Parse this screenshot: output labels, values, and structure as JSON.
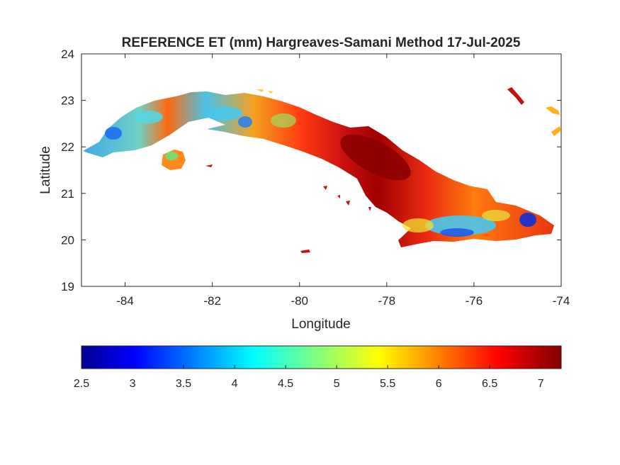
{
  "title": "REFERENCE ET (mm) Hargreaves-Samani Method  17-Jul-2025",
  "chart_data": {
    "type": "heatmap",
    "title": "REFERENCE ET (mm) Hargreaves-Samani Method  17-Jul-2025",
    "xlabel": "Longitude",
    "ylabel": "Latitude",
    "xlim": [
      -85,
      -74
    ],
    "ylim": [
      19,
      24
    ],
    "x_ticks": [
      "-84",
      "-82",
      "-80",
      "-78",
      "-76",
      "-74"
    ],
    "y_ticks": [
      "19",
      "20",
      "21",
      "22",
      "23",
      "24"
    ],
    "colorbar": {
      "range": [
        2.5,
        7.2
      ],
      "ticks": [
        "2.5",
        "3",
        "3.5",
        "4",
        "4.5",
        "5",
        "5.5",
        "6",
        "6.5",
        "7"
      ],
      "colormap": "jet",
      "orientation": "horizontal",
      "placement": "below"
    },
    "grid": false,
    "box": true
  },
  "colors": {
    "jet_stops": [
      "#00008f",
      "#0000ff",
      "#00ffff",
      "#ffff00",
      "#ff0000",
      "#800000"
    ],
    "axis": "#262626",
    "background": "#ffffff"
  }
}
